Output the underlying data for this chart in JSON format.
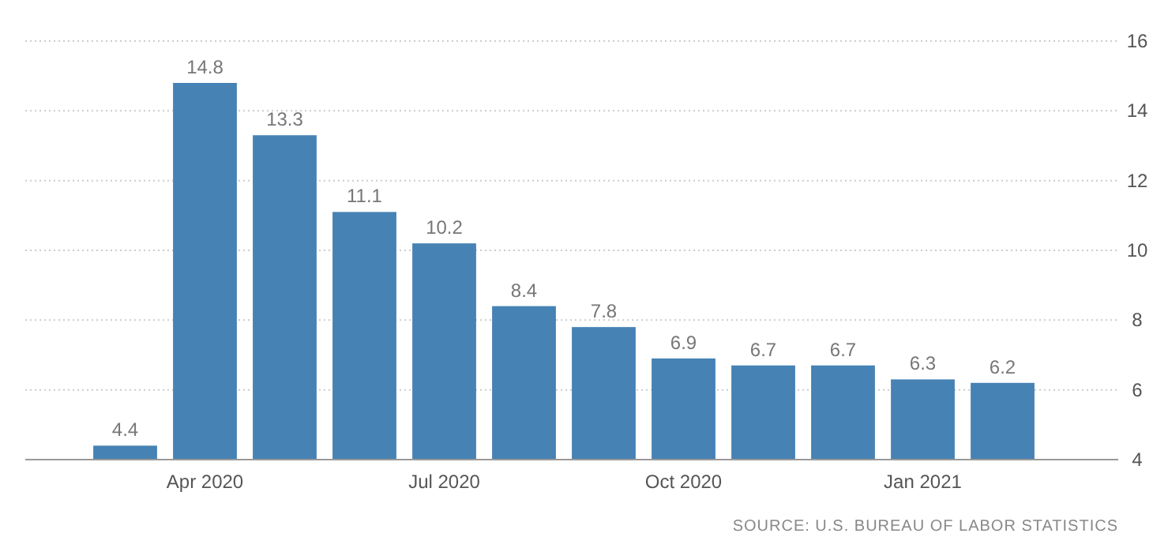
{
  "chart_data": {
    "type": "bar",
    "categories": [
      null,
      "Apr 2020",
      null,
      null,
      "Jul 2020",
      null,
      null,
      "Oct 2020",
      null,
      null,
      "Jan 2021",
      null
    ],
    "values": [
      4.4,
      14.8,
      13.3,
      11.1,
      10.2,
      8.4,
      7.8,
      6.9,
      6.7,
      6.7,
      6.3,
      6.2
    ],
    "color": "#4682b4",
    "ylim": [
      4,
      16
    ],
    "yticks": [
      4,
      6,
      8,
      10,
      12,
      14,
      16
    ],
    "grid": "y",
    "data_labels": true,
    "annotations": [
      "SOURCE: U.S. BUREAU OF LABOR STATISTICS"
    ]
  }
}
